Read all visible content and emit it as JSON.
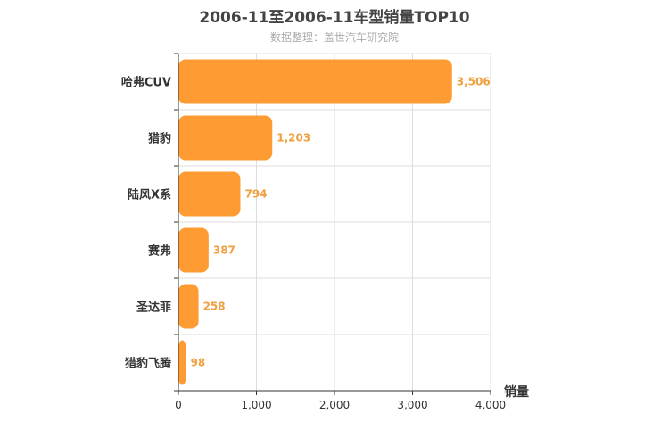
{
  "chart_data": {
    "type": "bar",
    "orientation": "horizontal",
    "title": "2006-11至2006-11车型销量TOP10",
    "subtitle": "数据整理：盖世汽车研究院",
    "categories": [
      "哈弗CUV",
      "猎豹",
      "陆风X系",
      "赛弗",
      "圣达菲",
      "猎豹飞腾"
    ],
    "values": [
      3506,
      1203,
      794,
      387,
      258,
      98
    ],
    "value_labels": [
      "3,506",
      "1,203",
      "794",
      "387",
      "258",
      "98"
    ],
    "xlabel": "销量",
    "xlim": [
      0,
      4000
    ],
    "xticks": [
      0,
      1000,
      2000,
      3000,
      4000
    ],
    "xtick_labels": [
      "0",
      "1,000",
      "2,000",
      "3,000",
      "4,000"
    ],
    "grid": true,
    "colors": {
      "bar": "#ff9b33",
      "value_label": "#f0a040",
      "grid": "#dddddd",
      "axis": "#333333"
    }
  }
}
